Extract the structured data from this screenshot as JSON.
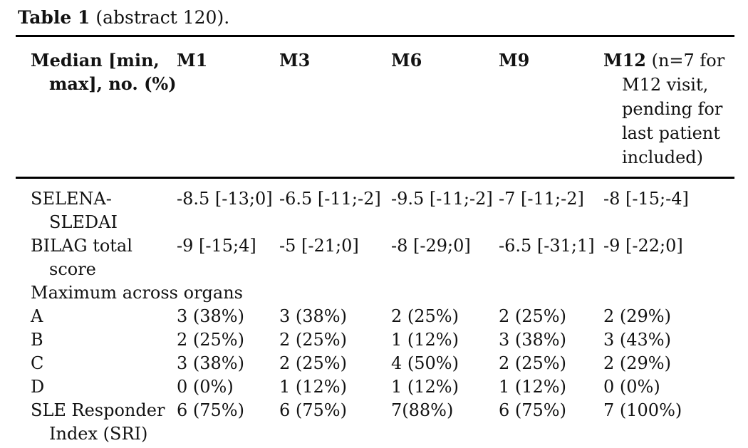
{
  "caption": {
    "label": "Table 1",
    "rest": " (abstract 120)."
  },
  "table": {
    "header": {
      "label": "Median [min, max], no. (%)",
      "columns": [
        "M1",
        "M3",
        "M6",
        "M9"
      ],
      "m12": {
        "label": "M12",
        "note": " (n=7 for M12 visit, pending for last patient included)"
      }
    },
    "rows": [
      {
        "label": "SELENA-SLEDAI",
        "bold": true,
        "span": false,
        "values": [
          "-8.5 [-13;0]",
          "-6.5 [-11;-2]",
          "-9.5 [-11;-2]",
          "-7 [-11;-2]",
          "-8 [-15;-4]"
        ]
      },
      {
        "label": "BILAG total score",
        "bold": true,
        "span": false,
        "values": [
          "-9 [-15;4]",
          "-5 [-21;0]",
          "-8 [-29;0]",
          "-6.5 [-31;1]",
          "-9 [-22;0]"
        ]
      },
      {
        "label": "Maximum across organs",
        "bold": false,
        "span": true,
        "values": []
      },
      {
        "label": "A",
        "bold": false,
        "span": false,
        "values": [
          "3 (38%)",
          "3 (38%)",
          "2 (25%)",
          "2 (25%)",
          "2 (29%)"
        ]
      },
      {
        "label": "B",
        "bold": false,
        "span": false,
        "values": [
          "2 (25%)",
          "2 (25%)",
          "1 (12%)",
          "3 (38%)",
          "3 (43%)"
        ]
      },
      {
        "label": "C",
        "bold": false,
        "span": false,
        "values": [
          "3 (38%)",
          "2 (25%)",
          "4 (50%)",
          "2 (25%)",
          "2 (29%)"
        ]
      },
      {
        "label": "D",
        "bold": false,
        "span": false,
        "values": [
          "0 (0%)",
          "1 (12%)",
          "1 (12%)",
          "1 (12%)",
          "0 (0%)"
        ]
      },
      {
        "label": "SLE Responder Index (SRI)",
        "bold": true,
        "span": false,
        "values": [
          "6 (75%)",
          "6 (75%)",
          "7(88%)",
          "6 (75%)",
          "7 (100%)"
        ]
      }
    ]
  }
}
